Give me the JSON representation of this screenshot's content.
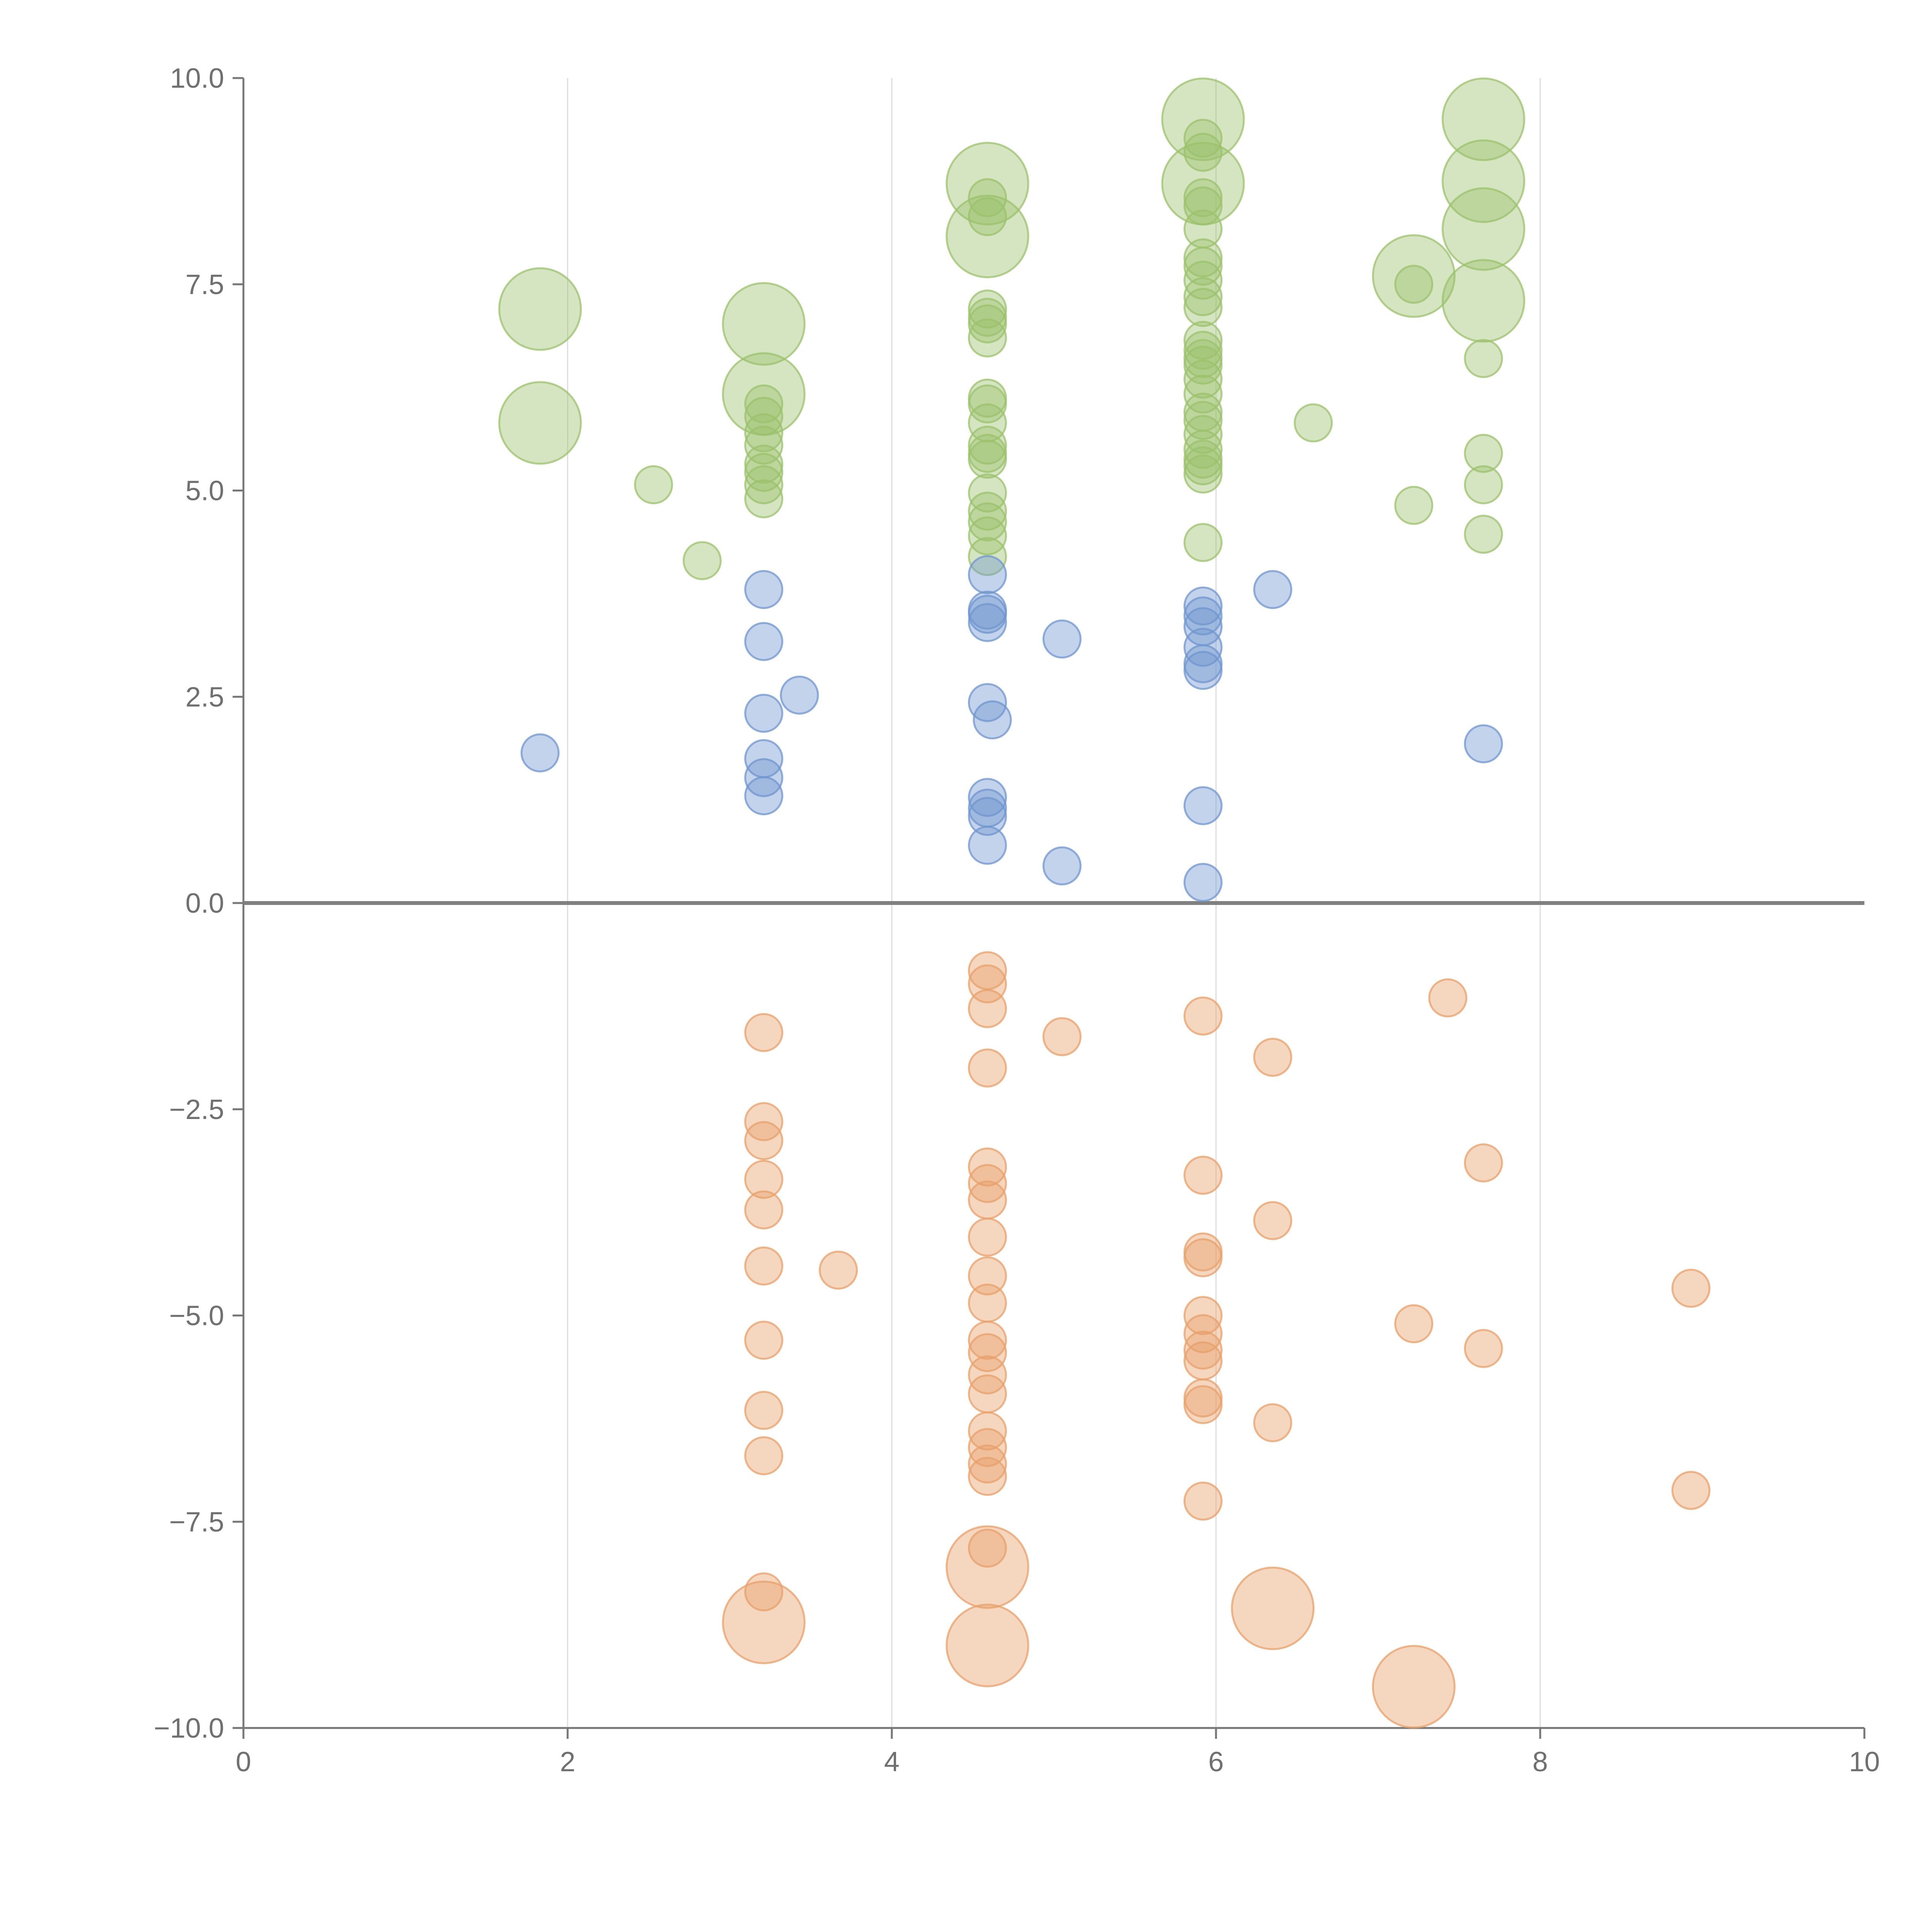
{
  "chart_data": {
    "type": "scatter",
    "title": "",
    "xlabel": "",
    "ylabel": "",
    "xlim": [
      0,
      10
    ],
    "ylim": [
      -10,
      10
    ],
    "x_ticks": [
      0,
      2,
      4,
      6,
      8,
      10
    ],
    "x_tick_labels": [
      "0",
      "2",
      "4",
      "6",
      "8",
      "10"
    ],
    "y_ticks": [
      10,
      7.5,
      5,
      2.5,
      0,
      -2.5,
      -5,
      -7.5,
      -10
    ],
    "y_tick_labels": [
      "10.0",
      "7.5",
      "5.0",
      "2.5",
      "0.0",
      "−2.5",
      "−5.0",
      "−7.5",
      "−10.0"
    ],
    "grid": "vertical",
    "legend": "none",
    "colors": {
      "green": "#9bc26b",
      "blue": "#6f95cf",
      "orange": "#e8a06a"
    },
    "series": [
      {
        "name": "green",
        "color": "#9bc26b",
        "points": [
          {
            "x": 1.83,
            "y": 7.2,
            "size": 2.2
          },
          {
            "x": 1.83,
            "y": 5.82,
            "size": 2.2
          },
          {
            "x": 2.53,
            "y": 5.07,
            "size": 1
          },
          {
            "x": 2.83,
            "y": 4.15,
            "size": 1
          },
          {
            "x": 3.21,
            "y": 7.02,
            "size": 2.2
          },
          {
            "x": 3.21,
            "y": 6.17,
            "size": 2.2
          },
          {
            "x": 3.21,
            "y": 6.05,
            "size": 1
          },
          {
            "x": 3.21,
            "y": 5.9,
            "size": 1
          },
          {
            "x": 3.21,
            "y": 5.7,
            "size": 1
          },
          {
            "x": 3.21,
            "y": 5.55,
            "size": 1
          },
          {
            "x": 3.21,
            "y": 5.32,
            "size": 1
          },
          {
            "x": 3.21,
            "y": 5.22,
            "size": 1
          },
          {
            "x": 3.21,
            "y": 5.07,
            "size": 1
          },
          {
            "x": 3.21,
            "y": 4.9,
            "size": 1
          },
          {
            "x": 4.59,
            "y": 8.72,
            "size": 2.2
          },
          {
            "x": 4.59,
            "y": 8.08,
            "size": 2.2
          },
          {
            "x": 4.59,
            "y": 8.55,
            "size": 1
          },
          {
            "x": 4.59,
            "y": 8.32,
            "size": 1
          },
          {
            "x": 4.59,
            "y": 7.2,
            "size": 1
          },
          {
            "x": 4.59,
            "y": 7.1,
            "size": 1
          },
          {
            "x": 4.59,
            "y": 7.02,
            "size": 1
          },
          {
            "x": 4.59,
            "y": 6.85,
            "size": 1
          },
          {
            "x": 4.59,
            "y": 6.12,
            "size": 1
          },
          {
            "x": 4.59,
            "y": 6.05,
            "size": 1
          },
          {
            "x": 4.59,
            "y": 5.82,
            "size": 1
          },
          {
            "x": 4.59,
            "y": 5.55,
            "size": 1
          },
          {
            "x": 4.59,
            "y": 5.45,
            "size": 1
          },
          {
            "x": 4.59,
            "y": 5.38,
            "size": 1
          },
          {
            "x": 4.59,
            "y": 4.97,
            "size": 1
          },
          {
            "x": 4.59,
            "y": 4.75,
            "size": 1
          },
          {
            "x": 4.59,
            "y": 4.62,
            "size": 1
          },
          {
            "x": 4.59,
            "y": 4.45,
            "size": 1
          },
          {
            "x": 4.59,
            "y": 4.2,
            "size": 1
          },
          {
            "x": 5.92,
            "y": 9.5,
            "size": 2.2
          },
          {
            "x": 5.92,
            "y": 8.72,
            "size": 2.2
          },
          {
            "x": 5.92,
            "y": 9.27,
            "size": 1
          },
          {
            "x": 5.92,
            "y": 9.1,
            "size": 1
          },
          {
            "x": 5.92,
            "y": 8.55,
            "size": 1
          },
          {
            "x": 5.92,
            "y": 8.45,
            "size": 1
          },
          {
            "x": 5.92,
            "y": 8.17,
            "size": 1
          },
          {
            "x": 5.92,
            "y": 7.82,
            "size": 1
          },
          {
            "x": 5.92,
            "y": 7.72,
            "size": 1
          },
          {
            "x": 5.92,
            "y": 7.55,
            "size": 1
          },
          {
            "x": 5.92,
            "y": 7.35,
            "size": 1
          },
          {
            "x": 5.92,
            "y": 7.22,
            "size": 1
          },
          {
            "x": 5.92,
            "y": 6.82,
            "size": 1
          },
          {
            "x": 5.92,
            "y": 6.7,
            "size": 1
          },
          {
            "x": 5.92,
            "y": 6.6,
            "size": 1
          },
          {
            "x": 5.92,
            "y": 6.52,
            "size": 1
          },
          {
            "x": 5.92,
            "y": 6.35,
            "size": 1
          },
          {
            "x": 5.92,
            "y": 6.17,
            "size": 1
          },
          {
            "x": 5.92,
            "y": 5.95,
            "size": 1
          },
          {
            "x": 5.92,
            "y": 5.85,
            "size": 1
          },
          {
            "x": 5.92,
            "y": 5.68,
            "size": 1
          },
          {
            "x": 5.92,
            "y": 5.5,
            "size": 1
          },
          {
            "x": 5.92,
            "y": 5.38,
            "size": 1
          },
          {
            "x": 5.92,
            "y": 5.3,
            "size": 1
          },
          {
            "x": 5.92,
            "y": 5.2,
            "size": 1
          },
          {
            "x": 5.92,
            "y": 4.37,
            "size": 1
          },
          {
            "x": 6.6,
            "y": 5.82,
            "size": 1
          },
          {
            "x": 7.22,
            "y": 7.6,
            "size": 2.2
          },
          {
            "x": 7.22,
            "y": 7.5,
            "size": 1
          },
          {
            "x": 7.22,
            "y": 4.82,
            "size": 1
          },
          {
            "x": 7.65,
            "y": 9.5,
            "size": 2.2
          },
          {
            "x": 7.65,
            "y": 8.75,
            "size": 2.2
          },
          {
            "x": 7.65,
            "y": 8.17,
            "size": 2.2
          },
          {
            "x": 7.65,
            "y": 7.3,
            "size": 2.2
          },
          {
            "x": 7.65,
            "y": 6.6,
            "size": 1
          },
          {
            "x": 7.65,
            "y": 5.45,
            "size": 1
          },
          {
            "x": 7.65,
            "y": 5.07,
            "size": 1
          },
          {
            "x": 7.65,
            "y": 4.47,
            "size": 1
          }
        ]
      },
      {
        "name": "blue",
        "color": "#6f95cf",
        "points": [
          {
            "x": 1.83,
            "y": 1.82,
            "size": 1
          },
          {
            "x": 3.21,
            "y": 3.8,
            "size": 1
          },
          {
            "x": 3.21,
            "y": 3.17,
            "size": 1
          },
          {
            "x": 3.21,
            "y": 2.3,
            "size": 1
          },
          {
            "x": 3.21,
            "y": 1.75,
            "size": 1
          },
          {
            "x": 3.21,
            "y": 1.52,
            "size": 1
          },
          {
            "x": 3.21,
            "y": 1.3,
            "size": 1
          },
          {
            "x": 3.43,
            "y": 2.52,
            "size": 1
          },
          {
            "x": 4.59,
            "y": 3.98,
            "size": 1
          },
          {
            "x": 4.59,
            "y": 3.55,
            "size": 1
          },
          {
            "x": 4.59,
            "y": 3.5,
            "size": 1
          },
          {
            "x": 4.59,
            "y": 3.4,
            "size": 1
          },
          {
            "x": 4.59,
            "y": 2.43,
            "size": 1
          },
          {
            "x": 4.62,
            "y": 2.22,
            "size": 1
          },
          {
            "x": 4.59,
            "y": 1.28,
            "size": 1
          },
          {
            "x": 4.59,
            "y": 1.15,
            "size": 1
          },
          {
            "x": 4.59,
            "y": 1.05,
            "size": 1
          },
          {
            "x": 4.59,
            "y": 0.7,
            "size": 1
          },
          {
            "x": 5.05,
            "y": 3.2,
            "size": 1
          },
          {
            "x": 5.05,
            "y": 0.45,
            "size": 1
          },
          {
            "x": 5.92,
            "y": 3.6,
            "size": 1
          },
          {
            "x": 5.92,
            "y": 3.48,
            "size": 1
          },
          {
            "x": 5.92,
            "y": 3.35,
            "size": 1
          },
          {
            "x": 5.92,
            "y": 3.1,
            "size": 1
          },
          {
            "x": 5.92,
            "y": 2.9,
            "size": 1
          },
          {
            "x": 5.92,
            "y": 2.82,
            "size": 1
          },
          {
            "x": 5.92,
            "y": 1.18,
            "size": 1
          },
          {
            "x": 5.92,
            "y": 0.25,
            "size": 1
          },
          {
            "x": 6.35,
            "y": 3.8,
            "size": 1
          },
          {
            "x": 7.65,
            "y": 1.93,
            "size": 1
          }
        ]
      },
      {
        "name": "orange",
        "color": "#e8a06a",
        "points": [
          {
            "x": 3.21,
            "y": -1.57,
            "size": 1
          },
          {
            "x": 3.21,
            "y": -2.65,
            "size": 1
          },
          {
            "x": 3.21,
            "y": -2.88,
            "size": 1
          },
          {
            "x": 3.21,
            "y": -3.35,
            "size": 1
          },
          {
            "x": 3.21,
            "y": -3.72,
            "size": 1
          },
          {
            "x": 3.21,
            "y": -4.4,
            "size": 1
          },
          {
            "x": 3.21,
            "y": -5.3,
            "size": 1
          },
          {
            "x": 3.21,
            "y": -6.15,
            "size": 1
          },
          {
            "x": 3.21,
            "y": -6.7,
            "size": 1
          },
          {
            "x": 3.21,
            "y": -8.35,
            "size": 1
          },
          {
            "x": 3.21,
            "y": -8.72,
            "size": 2.2
          },
          {
            "x": 3.67,
            "y": -4.45,
            "size": 1
          },
          {
            "x": 4.59,
            "y": -0.82,
            "size": 1
          },
          {
            "x": 4.59,
            "y": -0.98,
            "size": 1
          },
          {
            "x": 4.59,
            "y": -1.28,
            "size": 1
          },
          {
            "x": 4.59,
            "y": -2.0,
            "size": 1
          },
          {
            "x": 4.59,
            "y": -3.2,
            "size": 1
          },
          {
            "x": 4.59,
            "y": -3.4,
            "size": 1
          },
          {
            "x": 4.59,
            "y": -3.6,
            "size": 1
          },
          {
            "x": 4.59,
            "y": -4.05,
            "size": 1
          },
          {
            "x": 4.59,
            "y": -4.52,
            "size": 1
          },
          {
            "x": 4.59,
            "y": -4.85,
            "size": 1
          },
          {
            "x": 4.59,
            "y": -5.3,
            "size": 1
          },
          {
            "x": 4.59,
            "y": -5.45,
            "size": 1
          },
          {
            "x": 4.59,
            "y": -5.72,
            "size": 1
          },
          {
            "x": 4.59,
            "y": -5.95,
            "size": 1
          },
          {
            "x": 4.59,
            "y": -6.4,
            "size": 1
          },
          {
            "x": 4.59,
            "y": -6.6,
            "size": 1
          },
          {
            "x": 4.59,
            "y": -6.8,
            "size": 1
          },
          {
            "x": 4.59,
            "y": -6.95,
            "size": 1
          },
          {
            "x": 4.59,
            "y": -7.82,
            "size": 1
          },
          {
            "x": 4.59,
            "y": -8.05,
            "size": 2.2
          },
          {
            "x": 4.59,
            "y": -9.0,
            "size": 2.2
          },
          {
            "x": 5.05,
            "y": -1.62,
            "size": 1
          },
          {
            "x": 5.92,
            "y": -1.37,
            "size": 1
          },
          {
            "x": 5.92,
            "y": -3.3,
            "size": 1
          },
          {
            "x": 5.92,
            "y": -4.23,
            "size": 1
          },
          {
            "x": 5.92,
            "y": -4.3,
            "size": 1
          },
          {
            "x": 5.92,
            "y": -5.0,
            "size": 1
          },
          {
            "x": 5.92,
            "y": -5.22,
            "size": 1
          },
          {
            "x": 5.92,
            "y": -5.42,
            "size": 1
          },
          {
            "x": 5.92,
            "y": -5.55,
            "size": 1
          },
          {
            "x": 5.92,
            "y": -6.0,
            "size": 1
          },
          {
            "x": 5.92,
            "y": -6.08,
            "size": 1
          },
          {
            "x": 5.92,
            "y": -7.25,
            "size": 1
          },
          {
            "x": 6.35,
            "y": -1.87,
            "size": 1
          },
          {
            "x": 6.35,
            "y": -3.85,
            "size": 1
          },
          {
            "x": 6.35,
            "y": -6.3,
            "size": 1
          },
          {
            "x": 6.35,
            "y": -8.55,
            "size": 2.2
          },
          {
            "x": 7.22,
            "y": -5.1,
            "size": 1
          },
          {
            "x": 7.22,
            "y": -9.5,
            "size": 2.2
          },
          {
            "x": 7.43,
            "y": -1.15,
            "size": 1
          },
          {
            "x": 7.65,
            "y": -3.15,
            "size": 1
          },
          {
            "x": 7.65,
            "y": -5.4,
            "size": 1
          },
          {
            "x": 8.93,
            "y": -4.67,
            "size": 1
          },
          {
            "x": 8.93,
            "y": -7.12,
            "size": 1
          }
        ]
      }
    ]
  }
}
